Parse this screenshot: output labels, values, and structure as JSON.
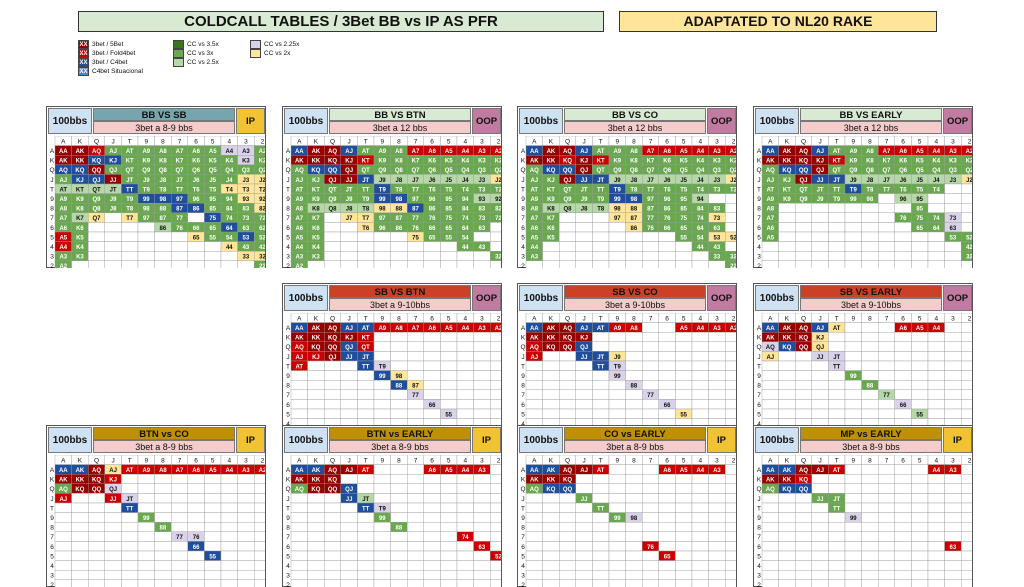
{
  "header": {
    "title": "COLDCALL TABLES / 3Bet BB vs IP AS PFR",
    "title_bg": "#d9ead3",
    "note": "ADAPTATED TO NL20 RAKE",
    "note_bg": "#ffe599"
  },
  "legend": [
    {
      "code": "XX",
      "label": "3bet / 5Bet",
      "color": "#990000"
    },
    {
      "code": "XX",
      "label": "3bet / Fold4bet",
      "color": "#cc0000"
    },
    {
      "code": "XX",
      "label": "3bet / C4bet",
      "color": "#1f4e9c"
    },
    {
      "code": "XX",
      "label": "C4bet Situacional",
      "color": "#4a86c8"
    },
    {
      "code": "",
      "label": "CC vs 3.5x",
      "color": "#38761d"
    },
    {
      "code": "",
      "label": "CC vs 3x",
      "color": "#6aa84f"
    },
    {
      "code": "",
      "label": "CC vs 2.5x",
      "color": "#b6d7a8"
    },
    {
      "code": "",
      "label": "CC vs 2.25x",
      "color": "#d9d2e9"
    },
    {
      "code": "",
      "label": "CC vs 2x",
      "color": "#ffe599"
    }
  ],
  "colors": {
    "R": "#990000",
    "r": "#cc0000",
    "B": "#1f4e9c",
    "b": "#4a86c8",
    "G": "#38761d",
    "g": "#6aa84f",
    "L": "#b6d7a8",
    "P": "#d9d2e9",
    "Y": "#ffe599",
    "header_cell": "#d9d9d9",
    "ip": "#f1c232",
    "oop": "#c27ba0"
  },
  "rank_order": [
    "A",
    "K",
    "Q",
    "J",
    "T",
    "9",
    "8",
    "7",
    "6",
    "5",
    "4",
    "3",
    "2"
  ],
  "chart_data": [
    {
      "type": "table",
      "stack": "100bbs",
      "title": "BB VS SB",
      "title_bg": "#76a5af",
      "subtitle": "3bet a 8-9 bbs",
      "subtitle_bg": "#f4cccc",
      "position": "IP",
      "rows": [
        {
          "label": "A",
          "cells": "RRrgggggggPPg"
        },
        {
          "label": "K",
          "cells": "RRBBgggggggPg"
        },
        {
          "label": "Q",
          "cells": "BBRgggggggggg"
        },
        {
          "label": "J",
          "cells": "gBBRgggggggYY"
        },
        {
          "label": "T",
          "cells": "LLLLBgggggYYY"
        },
        {
          "label": "9",
          "cells": "gggggBBBgggYY"
        },
        {
          "label": "8",
          "cells": "gggggggBBgggY"
        },
        {
          "label": "7",
          "cells": "gLY.Yggg.Bggg"
        },
        {
          "label": "6",
          "cells": "gg....LgggBgg"
        },
        {
          "label": "5",
          "cells": "rg......YggBg"
        },
        {
          "label": "4",
          "cells": "rg........Ygg"
        },
        {
          "label": "3",
          "cells": "gg.........YY"
        },
        {
          "label": "2",
          "cells": "g...........g"
        }
      ]
    },
    {
      "type": "table",
      "stack": "100bbs",
      "title": "BB VS BTN",
      "title_bg": "#d9ead3",
      "subtitle": "3bet a 12 bbs",
      "subtitle_bg": "#f4cccc",
      "position": "OOP",
      "rows": [
        {
          "label": "A",
          "cells": "BRRBgggrrrrrr"
        },
        {
          "label": "K",
          "cells": "RRRRrgggggggg"
        },
        {
          "label": "Q",
          "cells": "gBBRggggggggg"
        },
        {
          "label": "J",
          "cells": "ggRRBLLLLLLLY"
        },
        {
          "label": "T",
          "cells": "gggggBggggggg"
        },
        {
          "label": "9",
          "cells": "gggggBBggggLL"
        },
        {
          "label": "8",
          "cells": "gLLLLYYBggggg"
        },
        {
          "label": "7",
          "cells": "gg.YYgggggggg"
        },
        {
          "label": "6",
          "cells": "gg..Yggggggg."
        },
        {
          "label": "5",
          "cells": "gg.....Yggg.."
        },
        {
          "label": "4",
          "cells": "gg........gg."
        },
        {
          "label": "3",
          "cells": "gg..........g"
        },
        {
          "label": "2",
          "cells": "g............"
        }
      ]
    },
    {
      "type": "table",
      "stack": "100bbs",
      "title": "BB VS CO",
      "title_bg": "#d9ead3",
      "subtitle": "3bet a 12 bbs",
      "subtitle_bg": "#f4cccc",
      "position": "OOP",
      "rows": [
        {
          "label": "A",
          "cells": "BRRBgggrrrrrr"
        },
        {
          "label": "K",
          "cells": "RRrRrgggggggg"
        },
        {
          "label": "Q",
          "cells": "gBBRggggggggg"
        },
        {
          "label": "J",
          "cells": "ggRBBLLLLLLLY"
        },
        {
          "label": "T",
          "cells": "gggggBggggggg"
        },
        {
          "label": "9",
          "cells": "gggggBBgggL.."
        },
        {
          "label": "8",
          "cells": "gLLLLYYggggg."
        },
        {
          "label": "7",
          "cells": "gg...YYggggY."
        },
        {
          "label": "6",
          "cells": "gg....Yggggg."
        },
        {
          "label": "5",
          "cells": "gg.......ggYY"
        },
        {
          "label": "4",
          "cells": "g.........gg."
        },
        {
          "label": "3",
          "cells": "g..........gg"
        },
        {
          "label": "2",
          "cells": "............g"
        }
      ]
    },
    {
      "type": "table",
      "stack": "100bbs",
      "title": "BB VS EARLY",
      "title_bg": "#d9ead3",
      "subtitle": "3bet a 12 bbs",
      "subtitle_bg": "#f4cccc",
      "position": "OOP",
      "rows": [
        {
          "label": "A",
          "cells": "BRRBgggrrrrrr"
        },
        {
          "label": "K",
          "cells": "RRRRrgggggggg"
        },
        {
          "label": "Q",
          "cells": "gBBRggggggggg"
        },
        {
          "label": "J",
          "cells": "ggRBBLLLLLLLY"
        },
        {
          "label": "T",
          "cells": "gggggBggggg.."
        },
        {
          "label": "9",
          "cells": "ggggggg.LL..."
        },
        {
          "label": "8",
          "cells": "g........g..."
        },
        {
          "label": "7",
          "cells": "g.......gggP."
        },
        {
          "label": "6",
          "cells": "g........ggP."
        },
        {
          "label": "5",
          "cells": "g..........gg"
        },
        {
          "label": "4",
          "cells": "............g"
        },
        {
          "label": "3",
          "cells": "............g"
        },
        {
          "label": "2",
          "cells": "............."
        }
      ]
    },
    {
      "type": "table",
      "stack": "100bbs",
      "title": "SB VS BTN",
      "title_bg": "#cc4125",
      "subtitle": "3bet a 9-10bbs",
      "subtitle_bg": "#f4cccc",
      "position": "OOP",
      "rows": [
        {
          "label": "A",
          "cells": "BRRBBrrrrrrrr"
        },
        {
          "label": "K",
          "cells": "RRRRr........"
        },
        {
          "label": "Q",
          "cells": "rRRBr........"
        },
        {
          "label": "J",
          "cells": "rrRBB........"
        },
        {
          "label": "T",
          "cells": "r...BP......."
        },
        {
          "label": "9",
          "cells": ".....BY......"
        },
        {
          "label": "8",
          "cells": "......BY....."
        },
        {
          "label": "7",
          "cells": ".......P....."
        },
        {
          "label": "6",
          "cells": "........P...."
        },
        {
          "label": "5",
          "cells": ".........P..."
        },
        {
          "label": "4",
          "cells": "............."
        },
        {
          "label": "3",
          "cells": "............."
        },
        {
          "label": "2",
          "cells": "............."
        }
      ]
    },
    {
      "type": "table",
      "stack": "100bbs",
      "title": "SB VS CO",
      "title_bg": "#cc4125",
      "subtitle": "3bet a 9-10bbs",
      "subtitle_bg": "#f4cccc",
      "position": "OOP",
      "rows": [
        {
          "label": "A",
          "cells": "BRRBBrr..rrrr"
        },
        {
          "label": "K",
          "cells": "RRRR........."
        },
        {
          "label": "Q",
          "cells": "rRRB........."
        },
        {
          "label": "J",
          "cells": "r..BBY......."
        },
        {
          "label": "T",
          "cells": "....BP......."
        },
        {
          "label": "9",
          "cells": ".....P......."
        },
        {
          "label": "8",
          "cells": "......P......"
        },
        {
          "label": "7",
          "cells": ".......P....."
        },
        {
          "label": "6",
          "cells": "........P...."
        },
        {
          "label": "5",
          "cells": ".........Y..."
        },
        {
          "label": "4",
          "cells": "............."
        },
        {
          "label": "3",
          "cells": "............."
        },
        {
          "label": "2",
          "cells": "............."
        }
      ]
    },
    {
      "type": "table",
      "stack": "100bbs",
      "title": "SB VS EARLY",
      "title_bg": "#cc4125",
      "subtitle": "3bet a 9-10bbs",
      "subtitle_bg": "#f4cccc",
      "position": "OOP",
      "rows": [
        {
          "label": "A",
          "cells": "BRRBY...rrr.."
        },
        {
          "label": "K",
          "cells": "RRRY........."
        },
        {
          "label": "Q",
          "cells": "PBRY........."
        },
        {
          "label": "J",
          "cells": "Y..PP........"
        },
        {
          "label": "T",
          "cells": "....P........"
        },
        {
          "label": "9",
          "cells": ".....g......."
        },
        {
          "label": "8",
          "cells": "......g......"
        },
        {
          "label": "7",
          "cells": ".......L....."
        },
        {
          "label": "6",
          "cells": "........P...."
        },
        {
          "label": "5",
          "cells": ".........L..."
        },
        {
          "label": "4",
          "cells": "............."
        },
        {
          "label": "3",
          "cells": "............."
        },
        {
          "label": "2",
          "cells": "............."
        }
      ]
    },
    {
      "type": "table",
      "stack": "100bbs",
      "title": "BTN vs CO",
      "title_bg": "#bf9000",
      "subtitle": "3bet a 8-9 bbs",
      "subtitle_bg": "#f4cccc",
      "position": "IP",
      "rows": [
        {
          "label": "A",
          "cells": "BBRYrrrrrrrrr"
        },
        {
          "label": "K",
          "cells": "RRRr........."
        },
        {
          "label": "Q",
          "cells": "gRRP........."
        },
        {
          "label": "J",
          "cells": "r..rP........"
        },
        {
          "label": "T",
          "cells": "....B........"
        },
        {
          "label": "9",
          "cells": ".....g......."
        },
        {
          "label": "8",
          "cells": "......g......"
        },
        {
          "label": "7",
          "cells": ".......PP...."
        },
        {
          "label": "6",
          "cells": "........B...."
        },
        {
          "label": "5",
          "cells": ".........B..."
        },
        {
          "label": "4",
          "cells": "............."
        },
        {
          "label": "3",
          "cells": "............."
        },
        {
          "label": "2",
          "cells": "............."
        }
      ]
    },
    {
      "type": "table",
      "stack": "100bbs",
      "title": "BTN vs EARLY",
      "title_bg": "#bf9000",
      "subtitle": "3bet a 8-9 bbs",
      "subtitle_bg": "#f4cccc",
      "position": "IP",
      "rows": [
        {
          "label": "A",
          "cells": "BBRRr...rrrr."
        },
        {
          "label": "K",
          "cells": "RRR.........."
        },
        {
          "label": "Q",
          "cells": "gRRB........."
        },
        {
          "label": "J",
          "cells": "...BL........"
        },
        {
          "label": "T",
          "cells": "....BP......."
        },
        {
          "label": "9",
          "cells": ".....g......."
        },
        {
          "label": "8",
          "cells": "......g......"
        },
        {
          "label": "7",
          "cells": "..........r.."
        },
        {
          "label": "6",
          "cells": "...........r."
        },
        {
          "label": "5",
          "cells": "............r"
        },
        {
          "label": "4",
          "cells": "............."
        },
        {
          "label": "3",
          "cells": "............."
        },
        {
          "label": "2",
          "cells": "............."
        }
      ]
    },
    {
      "type": "table",
      "stack": "100bbs",
      "title": "CO vs EARLY",
      "title_bg": "#bf9000",
      "subtitle": "3bet a 8-9 bbs",
      "subtitle_bg": "#f4cccc",
      "position": "IP",
      "rows": [
        {
          "label": "A",
          "cells": "BBRRr...rrrr."
        },
        {
          "label": "K",
          "cells": "RRR.........."
        },
        {
          "label": "Q",
          "cells": "gBB.........."
        },
        {
          "label": "J",
          "cells": "...g........."
        },
        {
          "label": "T",
          "cells": "....g........"
        },
        {
          "label": "9",
          "cells": ".....gP......"
        },
        {
          "label": "8",
          "cells": "............."
        },
        {
          "label": "7",
          "cells": "............."
        },
        {
          "label": "6",
          "cells": ".......r....."
        },
        {
          "label": "5",
          "cells": "........r...."
        },
        {
          "label": "4",
          "cells": "............."
        },
        {
          "label": "3",
          "cells": "............."
        },
        {
          "label": "2",
          "cells": "............."
        }
      ]
    },
    {
      "type": "table",
      "stack": "100bbs",
      "title": "MP vs EARLY",
      "title_bg": "#bf9000",
      "subtitle": "3bet a 8-9 bbs",
      "subtitle_bg": "#f4cccc",
      "position": "IP",
      "rows": [
        {
          "label": "A",
          "cells": "BBRRr.....rr."
        },
        {
          "label": "K",
          "cells": "RRr.........."
        },
        {
          "label": "Q",
          "cells": "gBB.........."
        },
        {
          "label": "J",
          "cells": "...gg........"
        },
        {
          "label": "T",
          "cells": "....g........"
        },
        {
          "label": "9",
          "cells": ".....P......."
        },
        {
          "label": "8",
          "cells": "............."
        },
        {
          "label": "7",
          "cells": "............."
        },
        {
          "label": "6",
          "cells": "...........r."
        },
        {
          "label": "5",
          "cells": "............."
        },
        {
          "label": "4",
          "cells": "............."
        },
        {
          "label": "3",
          "cells": "............."
        },
        {
          "label": "2",
          "cells": "............."
        }
      ]
    }
  ]
}
